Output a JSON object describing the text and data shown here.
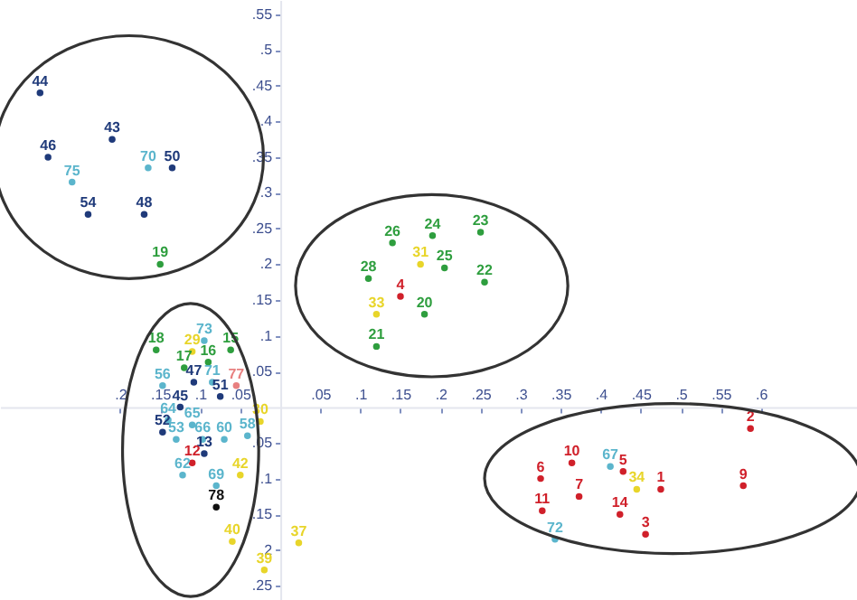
{
  "chart_data": {
    "type": "scatter",
    "xlim": [
      -0.35,
      0.72
    ],
    "ylim": [
      -0.27,
      0.57
    ],
    "xticks": [
      {
        "value": -0.2,
        "label": ".2"
      },
      {
        "value": -0.15,
        "label": ".15"
      },
      {
        "value": -0.1,
        "label": ".1"
      },
      {
        "value": -0.05,
        "label": ".05"
      },
      {
        "value": 0.05,
        "label": ".05"
      },
      {
        "value": 0.1,
        "label": ".1"
      },
      {
        "value": 0.15,
        "label": ".15"
      },
      {
        "value": 0.2,
        "label": ".2"
      },
      {
        "value": 0.25,
        "label": ".25"
      },
      {
        "value": 0.3,
        "label": ".3"
      },
      {
        "value": 0.35,
        "label": ".35"
      },
      {
        "value": 0.4,
        "label": ".4"
      },
      {
        "value": 0.45,
        "label": ".45"
      },
      {
        "value": 0.5,
        "label": ".5"
      },
      {
        "value": 0.55,
        "label": ".55"
      },
      {
        "value": 0.6,
        "label": ".6"
      }
    ],
    "yticks": [
      {
        "value": -0.25,
        "label": ".25"
      },
      {
        "value": -0.2,
        "label": ".2"
      },
      {
        "value": -0.15,
        "label": ".15"
      },
      {
        "value": -0.1,
        "label": ".1"
      },
      {
        "value": -0.05,
        "label": ".05"
      },
      {
        "value": 0.05,
        "label": ".05"
      },
      {
        "value": 0.1,
        "label": ".1"
      },
      {
        "value": 0.15,
        "label": ".15"
      },
      {
        "value": 0.2,
        "label": ".2"
      },
      {
        "value": 0.25,
        "label": ".25"
      },
      {
        "value": 0.3,
        "label": ".3"
      },
      {
        "value": 0.35,
        "label": ".35"
      },
      {
        "value": 0.4,
        "label": ".4"
      },
      {
        "value": 0.45,
        "label": ".45"
      },
      {
        "value": 0.5,
        "label": ".5"
      },
      {
        "value": 0.55,
        "label": ".55"
      }
    ],
    "grid": false,
    "marker": "circle",
    "series": [
      {
        "color": "#1f3a7a",
        "x": [
          -0.3,
          -0.21,
          -0.29,
          -0.135,
          -0.24,
          -0.17,
          -0.108,
          -0.125,
          -0.075,
          -0.147,
          -0.095
        ],
        "values": [
          0.44,
          0.375,
          0.35,
          0.335,
          0.27,
          0.27,
          0.035,
          0.0,
          0.015,
          -0.035,
          -0.065
        ]
      },
      {
        "color": "#5bb5cc",
        "x": [
          -0.26,
          -0.165,
          -0.095,
          -0.085,
          -0.147,
          -0.14,
          -0.11,
          -0.13,
          -0.097,
          -0.07,
          -0.041,
          -0.122,
          -0.08,
          0.412,
          0.343
        ],
        "values": [
          0.315,
          0.335,
          0.093,
          0.035,
          0.03,
          -0.018,
          -0.025,
          -0.045,
          -0.045,
          -0.045,
          -0.04,
          -0.095,
          -0.11,
          -0.083,
          -0.185
        ]
      },
      {
        "color": "#2e9e3e",
        "x": [
          -0.15,
          0.14,
          0.19,
          0.25,
          0.205,
          0.11,
          0.255,
          0.18,
          0.12,
          -0.155,
          -0.062,
          -0.12,
          -0.09
        ],
        "values": [
          0.2,
          0.23,
          0.24,
          0.245,
          0.195,
          0.18,
          0.175,
          0.13,
          0.085,
          0.08,
          0.08,
          0.055,
          0.063
        ]
      },
      {
        "color": "#e8d52a",
        "x": [
          0.175,
          0.12,
          -0.11,
          -0.025,
          -0.05,
          -0.06,
          0.023,
          -0.02,
          0.445
        ],
        "values": [
          0.2,
          0.13,
          0.078,
          -0.02,
          -0.095,
          -0.188,
          -0.19,
          -0.228,
          -0.115
        ]
      },
      {
        "color": "#d0202a",
        "x": [
          0.15,
          -0.11,
          0.587,
          0.364,
          0.428,
          0.325,
          0.475,
          0.578,
          0.373,
          0.327,
          0.424,
          0.456
        ],
        "values": [
          0.155,
          -0.078,
          -0.03,
          -0.078,
          -0.09,
          -0.1,
          -0.115,
          -0.11,
          -0.125,
          -0.145,
          -0.15,
          -0.178
        ]
      },
      {
        "color": "#e88080",
        "x": [
          -0.055
        ],
        "values": [
          0.03
        ]
      },
      {
        "color": "#111111",
        "x": [
          -0.08
        ],
        "values": [
          -0.14
        ]
      }
    ],
    "annotations": [
      {
        "text": "44",
        "x": -0.3,
        "y": 0.44
      },
      {
        "text": "43",
        "x": -0.21,
        "y": 0.375
      },
      {
        "text": "46",
        "x": -0.29,
        "y": 0.35
      },
      {
        "text": "50",
        "x": -0.135,
        "y": 0.335
      },
      {
        "text": "54",
        "x": -0.24,
        "y": 0.27
      },
      {
        "text": "48",
        "x": -0.17,
        "y": 0.27
      },
      {
        "text": "47",
        "x": -0.108,
        "y": 0.035
      },
      {
        "text": "45",
        "x": -0.125,
        "y": 0.0
      },
      {
        "text": "51",
        "x": -0.075,
        "y": 0.015
      },
      {
        "text": "52",
        "x": -0.147,
        "y": -0.035
      },
      {
        "text": "13",
        "x": -0.095,
        "y": -0.065
      },
      {
        "text": "75",
        "x": -0.26,
        "y": 0.315
      },
      {
        "text": "70",
        "x": -0.165,
        "y": 0.335
      },
      {
        "text": "73",
        "x": -0.095,
        "y": 0.093
      },
      {
        "text": "71",
        "x": -0.085,
        "y": 0.035
      },
      {
        "text": "56",
        "x": -0.147,
        "y": 0.03
      },
      {
        "text": "64",
        "x": -0.14,
        "y": -0.018
      },
      {
        "text": "65",
        "x": -0.11,
        "y": -0.025
      },
      {
        "text": "53",
        "x": -0.13,
        "y": -0.045
      },
      {
        "text": "66",
        "x": -0.097,
        "y": -0.045
      },
      {
        "text": "60",
        "x": -0.07,
        "y": -0.045
      },
      {
        "text": "58",
        "x": -0.041,
        "y": -0.04
      },
      {
        "text": "62",
        "x": -0.122,
        "y": -0.095
      },
      {
        "text": "69",
        "x": -0.08,
        "y": -0.11
      },
      {
        "text": "67",
        "x": 0.412,
        "y": -0.083
      },
      {
        "text": "72",
        "x": 0.343,
        "y": -0.185
      },
      {
        "text": "19",
        "x": -0.15,
        "y": 0.2
      },
      {
        "text": "26",
        "x": 0.14,
        "y": 0.23
      },
      {
        "text": "24",
        "x": 0.19,
        "y": 0.24
      },
      {
        "text": "23",
        "x": 0.25,
        "y": 0.245
      },
      {
        "text": "25",
        "x": 0.205,
        "y": 0.195
      },
      {
        "text": "28",
        "x": 0.11,
        "y": 0.18
      },
      {
        "text": "22",
        "x": 0.255,
        "y": 0.175
      },
      {
        "text": "20",
        "x": 0.18,
        "y": 0.13
      },
      {
        "text": "21",
        "x": 0.12,
        "y": 0.085
      },
      {
        "text": "18",
        "x": -0.155,
        "y": 0.08
      },
      {
        "text": "15",
        "x": -0.062,
        "y": 0.08
      },
      {
        "text": "17",
        "x": -0.12,
        "y": 0.055
      },
      {
        "text": "16",
        "x": -0.09,
        "y": 0.063
      },
      {
        "text": "31",
        "x": 0.175,
        "y": 0.2
      },
      {
        "text": "33",
        "x": 0.12,
        "y": 0.13
      },
      {
        "text": "29",
        "x": -0.11,
        "y": 0.078
      },
      {
        "text": "30",
        "x": -0.025,
        "y": -0.02
      },
      {
        "text": "42",
        "x": -0.05,
        "y": -0.095
      },
      {
        "text": "40",
        "x": -0.06,
        "y": -0.188
      },
      {
        "text": "37",
        "x": 0.023,
        "y": -0.19
      },
      {
        "text": "39",
        "x": -0.02,
        "y": -0.228
      },
      {
        "text": "34",
        "x": 0.445,
        "y": -0.115
      },
      {
        "text": "4",
        "x": 0.15,
        "y": 0.155
      },
      {
        "text": "12",
        "x": -0.11,
        "y": -0.078
      },
      {
        "text": "2",
        "x": 0.587,
        "y": -0.03
      },
      {
        "text": "10",
        "x": 0.364,
        "y": -0.078
      },
      {
        "text": "5",
        "x": 0.428,
        "y": -0.09
      },
      {
        "text": "6",
        "x": 0.325,
        "y": -0.1
      },
      {
        "text": "1",
        "x": 0.475,
        "y": -0.115
      },
      {
        "text": "9",
        "x": 0.578,
        "y": -0.11
      },
      {
        "text": "7",
        "x": 0.373,
        "y": -0.125
      },
      {
        "text": "11",
        "x": 0.327,
        "y": -0.145
      },
      {
        "text": "14",
        "x": 0.424,
        "y": -0.15
      },
      {
        "text": "3",
        "x": 0.456,
        "y": -0.178
      },
      {
        "text": "77",
        "x": -0.055,
        "y": 0.03
      },
      {
        "text": "78",
        "x": -0.08,
        "y": -0.14
      }
    ]
  }
}
